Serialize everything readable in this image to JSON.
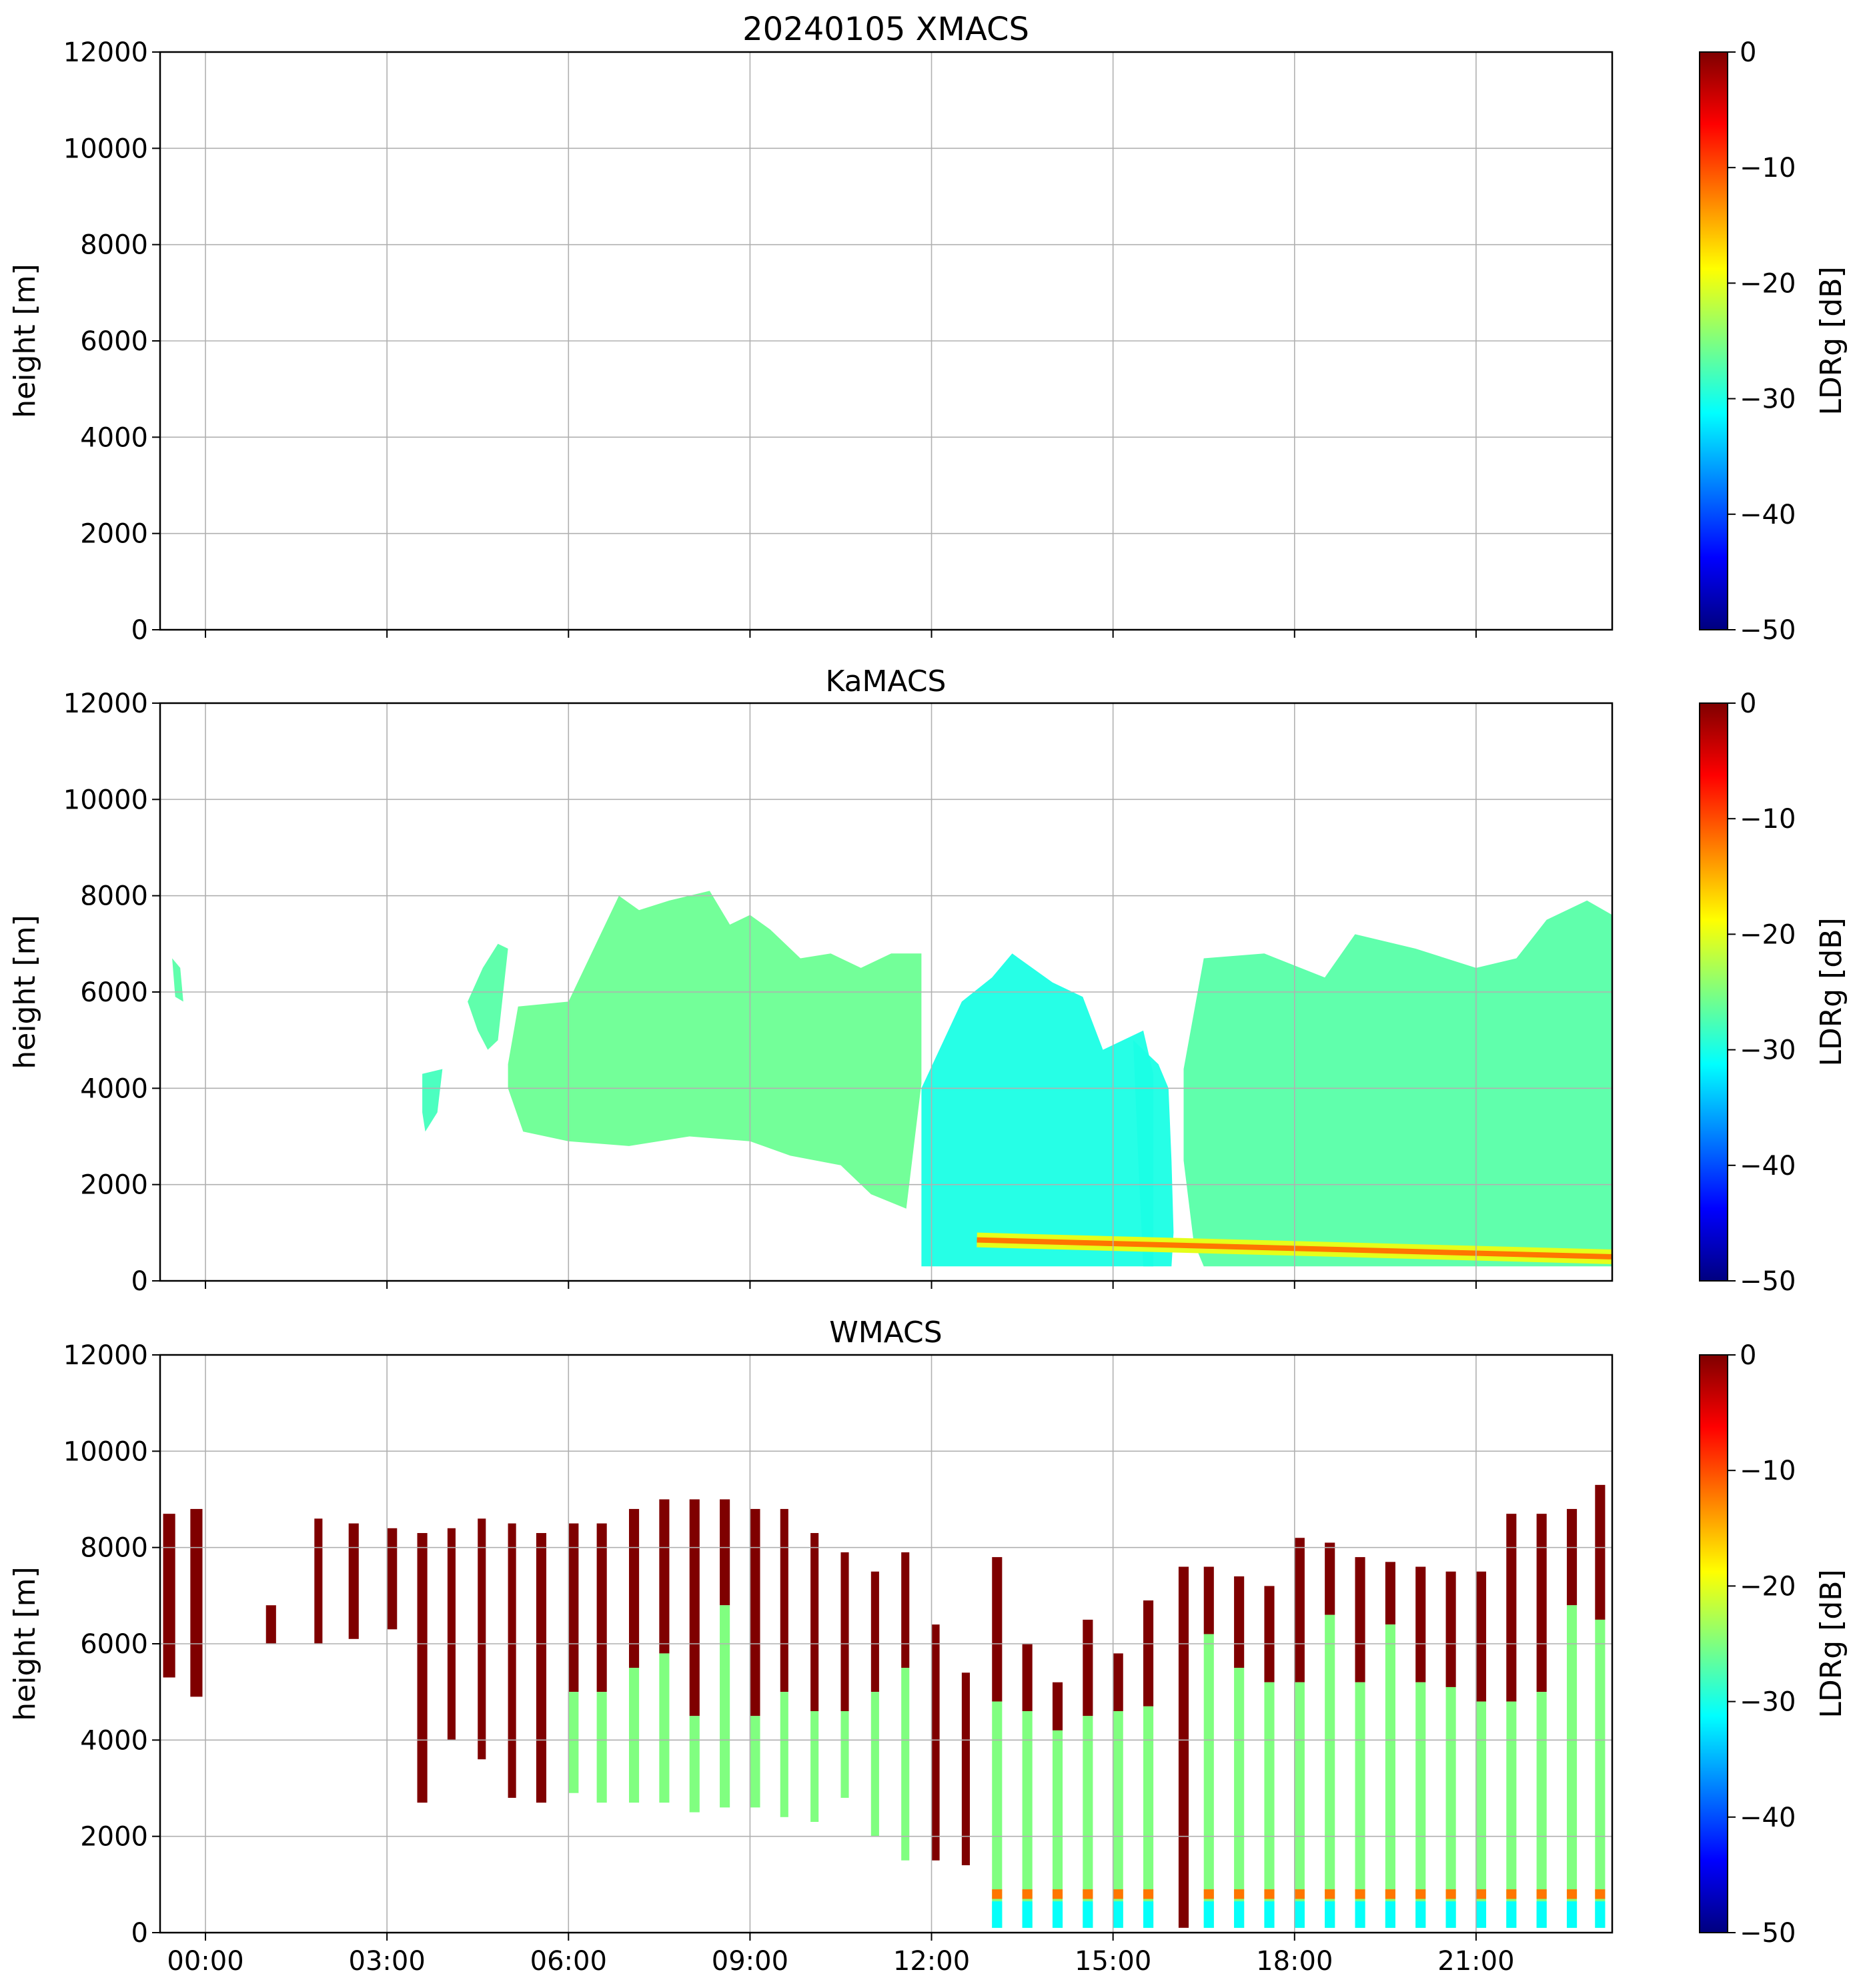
{
  "colormap": {
    "name": "jet",
    "stops": [
      "#00007f",
      "#0000ff",
      "#007fff",
      "#00ffff",
      "#7fff7f",
      "#ffff00",
      "#ff7f00",
      "#ff0000",
      "#7f0000"
    ]
  },
  "chart_data": [
    {
      "type": "heatmap",
      "title": "20240105 XMACS",
      "xlabel": "",
      "ylabel": "height [m]",
      "xlim": [
        "-00:45",
        "23:15"
      ],
      "ylim": [
        0,
        12000
      ],
      "yticks": [
        0,
        2000,
        4000,
        6000,
        8000,
        10000,
        12000
      ],
      "xticks": [
        "00:00",
        "03:00",
        "06:00",
        "09:00",
        "12:00",
        "15:00",
        "18:00",
        "21:00"
      ],
      "x_ticklabels_visible": false,
      "grid": true,
      "colorbar": {
        "label": "LDRg [dB]",
        "range": [
          -50,
          0
        ],
        "ticks": [
          0,
          -10,
          -20,
          -30,
          -40,
          -50
        ],
        "colormap": "jet"
      },
      "data_regions": []
    },
    {
      "type": "heatmap",
      "title": "KaMACS",
      "xlabel": "",
      "ylabel": "height [m]",
      "xlim": [
        "-00:45",
        "23:15"
      ],
      "ylim": [
        0,
        12000
      ],
      "yticks": [
        0,
        2000,
        4000,
        6000,
        8000,
        10000,
        12000
      ],
      "xticks": [
        "00:00",
        "03:00",
        "06:00",
        "09:00",
        "12:00",
        "15:00",
        "18:00",
        "21:00"
      ],
      "x_ticklabels_visible": false,
      "grid": true,
      "colorbar": {
        "label": "LDRg [dB]",
        "range": [
          -50,
          0
        ],
        "ticks": [
          0,
          -10,
          -20,
          -30,
          -40,
          -50
        ],
        "colormap": "jet"
      },
      "data_regions": [
        {
          "kind": "cloud",
          "value_db": -27,
          "points": [
            [
              "-00:33",
              6700
            ],
            [
              "-00:25",
              6500
            ],
            [
              "-00:22",
              5800
            ],
            [
              "-00:30",
              5900
            ]
          ]
        },
        {
          "kind": "cloud",
          "value_db": -28,
          "points": [
            [
              "03:35",
              4300
            ],
            [
              "03:55",
              4400
            ],
            [
              "03:50",
              3500
            ],
            [
              "03:38",
              3100
            ],
            [
              "03:35",
              3500
            ]
          ]
        },
        {
          "kind": "cloud",
          "value_db": -27,
          "points": [
            [
              "04:20",
              5800
            ],
            [
              "04:35",
              6500
            ],
            [
              "04:50",
              7000
            ],
            [
              "05:00",
              6900
            ],
            [
              "04:50",
              5000
            ],
            [
              "04:40",
              4800
            ],
            [
              "04:30",
              5200
            ]
          ]
        },
        {
          "kind": "cloud",
          "value_db": -26,
          "points": [
            [
              "05:00",
              4500
            ],
            [
              "05:10",
              5700
            ],
            [
              "06:00",
              5800
            ],
            [
              "06:50",
              8000
            ],
            [
              "07:10",
              7700
            ],
            [
              "07:40",
              7900
            ],
            [
              "08:20",
              8100
            ],
            [
              "08:40",
              7400
            ],
            [
              "09:00",
              7600
            ],
            [
              "09:20",
              7300
            ],
            [
              "09:50",
              6700
            ],
            [
              "10:20",
              6800
            ],
            [
              "10:50",
              6500
            ],
            [
              "11:20",
              6800
            ],
            [
              "11:50",
              6800
            ],
            [
              "11:50",
              4100
            ],
            [
              "11:35",
              1500
            ],
            [
              "11:00",
              1800
            ],
            [
              "10:30",
              2400
            ],
            [
              "09:40",
              2600
            ],
            [
              "09:00",
              2900
            ],
            [
              "08:00",
              3000
            ],
            [
              "07:00",
              2800
            ],
            [
              "06:00",
              2900
            ],
            [
              "05:15",
              3100
            ],
            [
              "05:00",
              4000
            ]
          ]
        },
        {
          "kind": "cloud",
          "value_db": -30,
          "points": [
            [
              "11:50",
              4000
            ],
            [
              "12:30",
              5800
            ],
            [
              "13:00",
              6300
            ],
            [
              "13:20",
              6800
            ],
            [
              "14:00",
              6200
            ],
            [
              "14:30",
              5900
            ],
            [
              "14:50",
              4800
            ],
            [
              "15:30",
              5200
            ],
            [
              "15:40",
              4300
            ],
            [
              "15:40",
              300
            ],
            [
              "11:50",
              300
            ]
          ]
        },
        {
          "kind": "cloud",
          "value_db": -30,
          "points": [
            [
              "15:20",
              5000
            ],
            [
              "15:45",
              4500
            ],
            [
              "15:55",
              4000
            ],
            [
              "15:58",
              2500
            ],
            [
              "16:00",
              1000
            ],
            [
              "15:58",
              300
            ],
            [
              "15:30",
              300
            ],
            [
              "15:25",
              2500
            ]
          ]
        },
        {
          "kind": "cloud",
          "value_db": -27,
          "points": [
            [
              "16:10",
              4400
            ],
            [
              "16:30",
              6700
            ],
            [
              "17:30",
              6800
            ],
            [
              "18:30",
              6300
            ],
            [
              "19:00",
              7200
            ],
            [
              "20:00",
              6900
            ],
            [
              "21:00",
              6500
            ],
            [
              "21:40",
              6700
            ],
            [
              "22:10",
              7500
            ],
            [
              "22:50",
              7900
            ],
            [
              "23:15",
              7600
            ],
            [
              "23:15",
              300
            ],
            [
              "16:30",
              300
            ],
            [
              "16:20",
              800
            ],
            [
              "16:10",
              2500
            ]
          ]
        },
        {
          "kind": "melting-layer",
          "value_db": -12,
          "start": "12:45",
          "end": "23:15",
          "height_start": 850,
          "height_end": 500
        }
      ]
    },
    {
      "type": "heatmap",
      "title": "WMACS",
      "xlabel": "",
      "ylabel": "height [m]",
      "xlim": [
        "-00:45",
        "23:15"
      ],
      "ylim": [
        0,
        12000
      ],
      "yticks": [
        0,
        2000,
        4000,
        6000,
        8000,
        10000,
        12000
      ],
      "xticks": [
        "00:00",
        "03:00",
        "06:00",
        "09:00",
        "12:00",
        "15:00",
        "18:00",
        "21:00"
      ],
      "x_ticklabels_visible": true,
      "grid": true,
      "colorbar": {
        "label": "LDRg [dB]",
        "range": [
          -50,
          0
        ],
        "ticks": [
          0,
          -10,
          -20,
          -30,
          -40,
          -50
        ],
        "colormap": "jet"
      },
      "profiles": [
        {
          "start": "-00:42",
          "end": "-00:30",
          "top": 8700,
          "base": 5300,
          "liquid_top": null
        },
        {
          "start": "-00:15",
          "end": "-00:03",
          "top": 8800,
          "base": 4900,
          "liquid_top": null
        },
        {
          "start": "01:00",
          "end": "01:10",
          "top": 6800,
          "base": 6000,
          "liquid_top": null
        },
        {
          "start": "01:48",
          "end": "01:56",
          "top": 8600,
          "base": 6000,
          "liquid_top": null
        },
        {
          "start": "02:22",
          "end": "02:32",
          "top": 8500,
          "base": 6100,
          "liquid_top": null
        },
        {
          "start": "03:00",
          "end": "03:10",
          "top": 8400,
          "base": 6300,
          "liquid_top": null
        },
        {
          "start": "03:30",
          "end": "03:40",
          "top": 8300,
          "base": 2700,
          "liquid_top": null
        },
        {
          "start": "04:00",
          "end": "04:08",
          "top": 8400,
          "base": 4000,
          "liquid_top": null
        },
        {
          "start": "04:30",
          "end": "04:38",
          "top": 8600,
          "base": 3600,
          "liquid_top": null
        },
        {
          "start": "05:00",
          "end": "05:08",
          "top": 8500,
          "base": 2800,
          "liquid_top": null
        },
        {
          "start": "05:28",
          "end": "05:38",
          "top": 8300,
          "base": 2700,
          "liquid_top": null
        },
        {
          "start": "06:00",
          "end": "06:10",
          "top": 8500,
          "base": 2900,
          "liquid_top": 5000
        },
        {
          "start": "06:28",
          "end": "06:38",
          "top": 8500,
          "base": 2700,
          "liquid_top": 5000
        },
        {
          "start": "07:00",
          "end": "07:10",
          "top": 8800,
          "base": 2700,
          "liquid_top": 5500
        },
        {
          "start": "07:30",
          "end": "07:40",
          "top": 9000,
          "base": 2700,
          "liquid_top": 5800
        },
        {
          "start": "08:00",
          "end": "08:10",
          "top": 9000,
          "base": 2500,
          "liquid_top": 4500
        },
        {
          "start": "08:30",
          "end": "08:40",
          "top": 9000,
          "base": 2600,
          "liquid_top": 6800
        },
        {
          "start": "09:00",
          "end": "09:10",
          "top": 8800,
          "base": 2600,
          "liquid_top": 4500
        },
        {
          "start": "09:30",
          "end": "09:38",
          "top": 8800,
          "base": 2400,
          "liquid_top": 5000
        },
        {
          "start": "10:00",
          "end": "10:08",
          "top": 8300,
          "base": 2300,
          "liquid_top": 4600
        },
        {
          "start": "10:30",
          "end": "10:38",
          "top": 7900,
          "base": 2800,
          "liquid_top": 4600
        },
        {
          "start": "11:00",
          "end": "11:08",
          "top": 7500,
          "base": 2000,
          "liquid_top": 5000
        },
        {
          "start": "11:30",
          "end": "11:38",
          "top": 7900,
          "base": 1500,
          "liquid_top": 5500
        },
        {
          "start": "12:00",
          "end": "12:08",
          "top": 6400,
          "base": 1500,
          "liquid_top": null
        },
        {
          "start": "12:30",
          "end": "12:38",
          "top": 5400,
          "base": 1400,
          "liquid_top": null
        },
        {
          "start": "13:00",
          "end": "13:10",
          "top": 7800,
          "base": 100,
          "liquid_top": 4800
        },
        {
          "start": "13:30",
          "end": "13:40",
          "top": 6000,
          "base": 100,
          "liquid_top": 4600
        },
        {
          "start": "14:00",
          "end": "14:10",
          "top": 5200,
          "base": 100,
          "liquid_top": 4200
        },
        {
          "start": "14:30",
          "end": "14:40",
          "top": 6500,
          "base": 100,
          "liquid_top": 4500
        },
        {
          "start": "15:00",
          "end": "15:10",
          "top": 5800,
          "base": 100,
          "liquid_top": 4600
        },
        {
          "start": "15:30",
          "end": "15:40",
          "top": 6900,
          "base": 100,
          "liquid_top": 4700
        },
        {
          "start": "16:05",
          "end": "16:15",
          "top": 7600,
          "base": 100,
          "liquid_top": null
        },
        {
          "start": "16:30",
          "end": "16:40",
          "top": 7600,
          "base": 100,
          "liquid_top": 6200
        },
        {
          "start": "17:00",
          "end": "17:10",
          "top": 7400,
          "base": 100,
          "liquid_top": 5500
        },
        {
          "start": "17:30",
          "end": "17:40",
          "top": 7200,
          "base": 100,
          "liquid_top": 5200
        },
        {
          "start": "18:00",
          "end": "18:10",
          "top": 8200,
          "base": 100,
          "liquid_top": 5200
        },
        {
          "start": "18:30",
          "end": "18:40",
          "top": 8100,
          "base": 100,
          "liquid_top": 6600
        },
        {
          "start": "19:00",
          "end": "19:10",
          "top": 7800,
          "base": 100,
          "liquid_top": 5200
        },
        {
          "start": "19:30",
          "end": "19:40",
          "top": 7700,
          "base": 100,
          "liquid_top": 6400
        },
        {
          "start": "20:00",
          "end": "20:10",
          "top": 7600,
          "base": 100,
          "liquid_top": 5200
        },
        {
          "start": "20:30",
          "end": "20:40",
          "top": 7500,
          "base": 100,
          "liquid_top": 5100
        },
        {
          "start": "21:00",
          "end": "21:10",
          "top": 7500,
          "base": 100,
          "liquid_top": 4800
        },
        {
          "start": "21:30",
          "end": "21:40",
          "top": 8700,
          "base": 100,
          "liquid_top": 4800
        },
        {
          "start": "22:00",
          "end": "22:10",
          "top": 8700,
          "base": 100,
          "liquid_top": 5000
        },
        {
          "start": "22:30",
          "end": "22:40",
          "top": 8800,
          "base": 100,
          "liquid_top": 6800
        },
        {
          "start": "22:58",
          "end": "23:08",
          "top": 9300,
          "base": 100,
          "liquid_top": 6500
        }
      ]
    }
  ]
}
